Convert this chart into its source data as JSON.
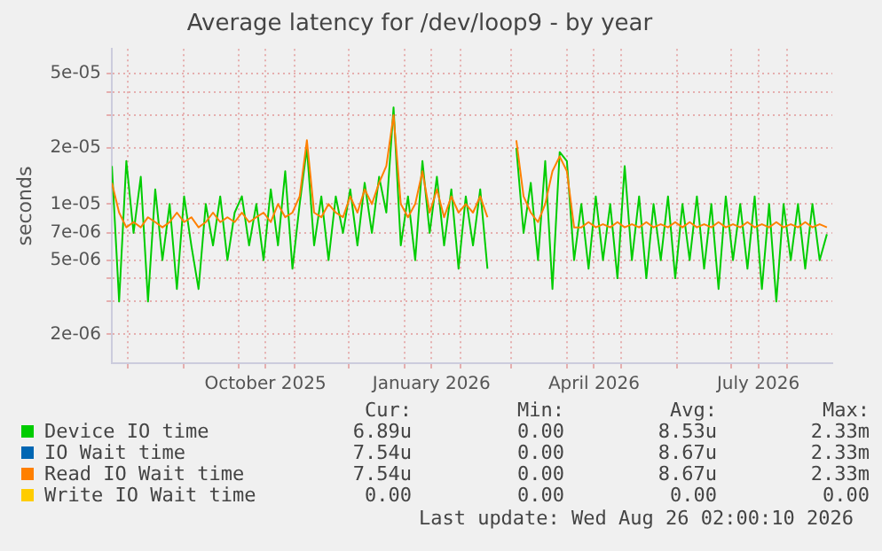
{
  "chart_data": {
    "type": "line",
    "title": "Average latency for /dev/loop9 - by year",
    "ylabel": "seconds",
    "log": "y",
    "grid": true,
    "legend": "bottom",
    "marker": "none",
    "line_style": "solid",
    "xlim": [
      "2025-07-23",
      "2026-08-26"
    ],
    "xticks": [
      {
        "value": "2025-08-01",
        "label": null
      },
      {
        "value": "2025-09-01",
        "label": null
      },
      {
        "value": "2025-10-01",
        "label": null
      },
      {
        "value": "2025-10-16",
        "label": "October 2025"
      },
      {
        "value": "2025-11-01",
        "label": null
      },
      {
        "value": "2025-12-01",
        "label": null
      },
      {
        "value": "2026-01-01",
        "label": null
      },
      {
        "value": "2026-01-16",
        "label": "January 2026"
      },
      {
        "value": "2026-02-01",
        "label": null
      },
      {
        "value": "2026-03-01",
        "label": null
      },
      {
        "value": "2026-04-01",
        "label": null
      },
      {
        "value": "2026-04-16",
        "label": "April 2026"
      },
      {
        "value": "2026-05-01",
        "label": null
      },
      {
        "value": "2026-06-01",
        "label": null
      },
      {
        "value": "2026-07-01",
        "label": null
      },
      {
        "value": "2026-07-16",
        "label": "July 2026"
      },
      {
        "value": "2026-08-01",
        "label": null
      }
    ],
    "ylim": [
      1.4e-06,
      6.8e-05
    ],
    "yticks": [
      {
        "value": 2e-06,
        "label": "2e-06"
      },
      {
        "value": 3e-06,
        "label": null
      },
      {
        "value": 4e-06,
        "label": null
      },
      {
        "value": 5e-06,
        "label": "5e-06"
      },
      {
        "value": 7e-06,
        "label": "7e-06"
      },
      {
        "value": 1e-05,
        "label": "1e-05"
      },
      {
        "value": 2e-05,
        "label": "2e-05"
      },
      {
        "value": 3e-05,
        "label": null
      },
      {
        "value": 4e-05,
        "label": null
      },
      {
        "value": 5e-05,
        "label": "5e-05"
      }
    ],
    "x": [
      "2025-07-23",
      "2025-07-27",
      "2025-07-31",
      "2025-08-04",
      "2025-08-08",
      "2025-08-12",
      "2025-08-16",
      "2025-08-20",
      "2025-08-24",
      "2025-08-28",
      "2025-09-01",
      "2025-09-05",
      "2025-09-09",
      "2025-09-13",
      "2025-09-17",
      "2025-09-21",
      "2025-09-25",
      "2025-09-29",
      "2025-10-03",
      "2025-10-07",
      "2025-10-11",
      "2025-10-15",
      "2025-10-19",
      "2025-10-23",
      "2025-10-27",
      "2025-10-31",
      "2025-11-04",
      "2025-11-08",
      "2025-11-12",
      "2025-11-16",
      "2025-11-20",
      "2025-11-24",
      "2025-11-28",
      "2025-12-02",
      "2025-12-06",
      "2025-12-10",
      "2025-12-14",
      "2025-12-18",
      "2025-12-22",
      "2025-12-26",
      "2025-12-30",
      "2026-01-03",
      "2026-01-07",
      "2026-01-11",
      "2026-01-15",
      "2026-01-19",
      "2026-01-23",
      "2026-01-27",
      "2026-01-31",
      "2026-02-04",
      "2026-02-08",
      "2026-02-12",
      "2026-02-16",
      "2026-02-20",
      "2026-02-24",
      "2026-02-28",
      "2026-03-04",
      "2026-03-08",
      "2026-03-12",
      "2026-03-16",
      "2026-03-20",
      "2026-03-24",
      "2026-03-28",
      "2026-04-01",
      "2026-04-05",
      "2026-04-09",
      "2026-04-13",
      "2026-04-17",
      "2026-04-21",
      "2026-04-25",
      "2026-04-29",
      "2026-05-03",
      "2026-05-07",
      "2026-05-11",
      "2026-05-15",
      "2026-05-19",
      "2026-05-23",
      "2026-05-27",
      "2026-05-31",
      "2026-06-04",
      "2026-06-08",
      "2026-06-12",
      "2026-06-16",
      "2026-06-20",
      "2026-06-24",
      "2026-06-28",
      "2026-07-02",
      "2026-07-06",
      "2026-07-10",
      "2026-07-14",
      "2026-07-18",
      "2026-07-22",
      "2026-07-26",
      "2026-07-30",
      "2026-08-03",
      "2026-08-07",
      "2026-08-11",
      "2026-08-15",
      "2026-08-19",
      "2026-08-23"
    ],
    "series": [
      {
        "name": "Device IO time",
        "color": "#00cc00",
        "values": [
          1.6e-05,
          3e-06,
          1.7e-05,
          7e-06,
          1.4e-05,
          3e-06,
          1.2e-05,
          5e-06,
          1e-05,
          3.5e-06,
          1.1e-05,
          6e-06,
          3.5e-06,
          1e-05,
          6e-06,
          1.1e-05,
          5e-06,
          9e-06,
          1.1e-05,
          6e-06,
          1e-05,
          5e-06,
          1.2e-05,
          6e-06,
          1.5e-05,
          4.5e-06,
          1e-05,
          2e-05,
          6e-06,
          1.1e-05,
          5e-06,
          1.1e-05,
          7e-06,
          1.2e-05,
          6e-06,
          1.3e-05,
          7e-06,
          1.4e-05,
          9e-06,
          3.3e-05,
          6e-06,
          1.1e-05,
          5e-06,
          1.7e-05,
          7e-06,
          1.4e-05,
          6e-06,
          1.2e-05,
          4.5e-06,
          1.1e-05,
          6e-06,
          1.2e-05,
          4.5e-06,
          null,
          null,
          null,
          2e-05,
          7e-06,
          1.3e-05,
          5e-06,
          1.7e-05,
          3.5e-06,
          1.9e-05,
          1.7e-05,
          5e-06,
          1e-05,
          4.5e-06,
          1.1e-05,
          5e-06,
          1e-05,
          4e-06,
          1.6e-05,
          5e-06,
          1.1e-05,
          4e-06,
          1e-05,
          5e-06,
          1.1e-05,
          4e-06,
          1e-05,
          5e-06,
          1.1e-05,
          4.5e-06,
          1e-05,
          3.5e-06,
          1.1e-05,
          5e-06,
          1e-05,
          4.5e-06,
          1.1e-05,
          3.5e-06,
          1e-05,
          3e-06,
          1e-05,
          5e-06,
          1e-05,
          4.5e-06,
          1e-05,
          5e-06,
          6.89e-06
        ]
      },
      {
        "name": "IO Wait time",
        "color": "#0066b3",
        "values": [
          null,
          null,
          null,
          null,
          null,
          null,
          null,
          null,
          null,
          null,
          null,
          null,
          null,
          null,
          null,
          null,
          null,
          null,
          null,
          null,
          null,
          null,
          null,
          null,
          null,
          null,
          null,
          null,
          null,
          null,
          null,
          null,
          null,
          null,
          null,
          null,
          null,
          null,
          null,
          null,
          null,
          null,
          null,
          null,
          null,
          null,
          null,
          null,
          null,
          null,
          null,
          null,
          null,
          null,
          null,
          null,
          null,
          null,
          null,
          null,
          null,
          null,
          null,
          null,
          null,
          null,
          null,
          null,
          null,
          null,
          null,
          null,
          null,
          null,
          null,
          null,
          null,
          null,
          null,
          null,
          null,
          null,
          null,
          null,
          null,
          null,
          null,
          null,
          null,
          null,
          null,
          null,
          null,
          null,
          null,
          null,
          null,
          null,
          null,
          null
        ]
      },
      {
        "name": "Read IO Wait time",
        "color": "#ff8000",
        "values": [
          1.3e-05,
          9e-06,
          7.5e-06,
          8e-06,
          7.5e-06,
          8.5e-06,
          8e-06,
          7.5e-06,
          8e-06,
          9e-06,
          8e-06,
          8.5e-06,
          7.5e-06,
          8e-06,
          9e-06,
          8e-06,
          8.5e-06,
          8e-06,
          9e-06,
          8e-06,
          8.5e-06,
          9e-06,
          8e-06,
          1e-05,
          8.5e-06,
          9e-06,
          1.1e-05,
          2.2e-05,
          9e-06,
          8.5e-06,
          1e-05,
          9e-06,
          8.5e-06,
          1.1e-05,
          9e-06,
          1.2e-05,
          1e-05,
          1.3e-05,
          1.6e-05,
          3e-05,
          1e-05,
          8.5e-06,
          1e-05,
          1.5e-05,
          9e-06,
          1.2e-05,
          8.5e-06,
          1.1e-05,
          9e-06,
          1e-05,
          9e-06,
          1.1e-05,
          8.5e-06,
          null,
          null,
          null,
          2.2e-05,
          1.1e-05,
          9e-06,
          8e-06,
          1e-05,
          1.5e-05,
          1.8e-05,
          1.5e-05,
          7.5e-06,
          7.5e-06,
          8e-06,
          7.5e-06,
          7.8e-06,
          7.5e-06,
          8e-06,
          7.5e-06,
          7.8e-06,
          7.5e-06,
          8e-06,
          7.5e-06,
          7.8e-06,
          7.5e-06,
          8e-06,
          7.5e-06,
          8e-06,
          7.5e-06,
          7.8e-06,
          7.5e-06,
          8e-06,
          7.5e-06,
          7.8e-06,
          7.5e-06,
          8e-06,
          7.5e-06,
          7.8e-06,
          7.5e-06,
          8e-06,
          7.5e-06,
          7.8e-06,
          7.5e-06,
          8e-06,
          7.5e-06,
          7.8e-06,
          7.5e-06
        ]
      },
      {
        "name": "Write IO Wait time",
        "color": "#ffcc00",
        "values": [
          null,
          null,
          null,
          null,
          null,
          null,
          null,
          null,
          null,
          null,
          null,
          null,
          null,
          null,
          null,
          null,
          null,
          null,
          null,
          null,
          null,
          null,
          null,
          null,
          null,
          null,
          null,
          null,
          null,
          null,
          null,
          null,
          null,
          null,
          null,
          null,
          null,
          null,
          null,
          null,
          null,
          null,
          null,
          null,
          null,
          null,
          null,
          null,
          null,
          null,
          null,
          null,
          null,
          null,
          null,
          null,
          null,
          null,
          null,
          null,
          null,
          null,
          null,
          null,
          null,
          null,
          null,
          null,
          null,
          null,
          null,
          null,
          null,
          null,
          null,
          null,
          null,
          null,
          null,
          null,
          null,
          null,
          null,
          null,
          null,
          null,
          null,
          null,
          null,
          null,
          null,
          null,
          null,
          null,
          null,
          null,
          null,
          null,
          null,
          null
        ]
      }
    ],
    "annotations": [
      "Cur:",
      "Min:",
      "Avg:",
      "Max:",
      "6.89u",
      "0.00",
      "8.53u",
      "2.33m",
      "7.54u",
      "0.00",
      "8.67u",
      "2.33m",
      "7.54u",
      "0.00",
      "8.67u",
      "2.33m",
      "0.00",
      "0.00",
      "0.00",
      "0.00",
      "Last update: Wed Aug 26 02:00:10 2026"
    ]
  }
}
